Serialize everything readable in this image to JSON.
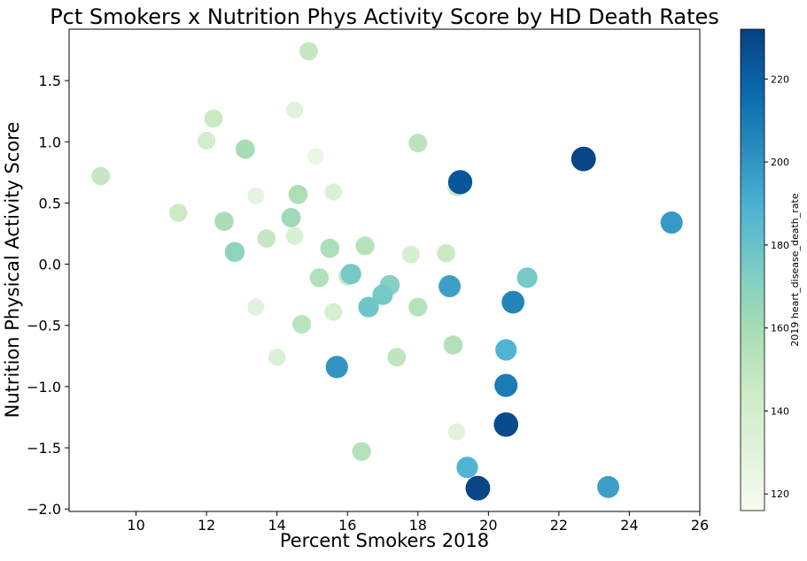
{
  "chart_data": {
    "type": "scatter",
    "title": "Pct Smokers x Nutrition Phys Activity Score by HD Death Rates",
    "xlabel": "Percent Smokers 2018",
    "ylabel": "Nutrition Physical Activity Score",
    "xlim": [
      8.1,
      26.0
    ],
    "ylim": [
      -2.02,
      1.92
    ],
    "x_ticks": [
      10,
      12,
      14,
      16,
      18,
      20,
      22,
      24,
      26
    ],
    "y_ticks": [
      -2.0,
      -1.5,
      -1.0,
      -0.5,
      0.0,
      0.5,
      1.0,
      1.5
    ],
    "x_tick_labels": [
      "10",
      "12",
      "14",
      "16",
      "18",
      "20",
      "22",
      "24",
      "26"
    ],
    "y_tick_labels": [
      "−2.0",
      "−1.5",
      "−1.0",
      "−0.5",
      "0.0",
      "0.5",
      "1.0",
      "1.5"
    ],
    "colorbar": {
      "label": "2019 heart_disease_death_rate",
      "range": [
        116,
        232
      ],
      "ticks": [
        120,
        140,
        160,
        180,
        200,
        220
      ],
      "tick_labels": [
        "120",
        "140",
        "160",
        "180",
        "200",
        "220"
      ],
      "colormap": "GnBu",
      "stops": [
        "#f7fcf0",
        "#e0f3db",
        "#ccebc5",
        "#a8ddb5",
        "#7bccc4",
        "#4eb3d3",
        "#2b8cbe",
        "#0868ac",
        "#084081"
      ]
    },
    "grid": false,
    "points": [
      {
        "x": 9.0,
        "y": 0.72,
        "v": 148
      },
      {
        "x": 11.2,
        "y": 0.42,
        "v": 145
      },
      {
        "x": 12.0,
        "y": 1.01,
        "v": 140
      },
      {
        "x": 12.2,
        "y": 1.19,
        "v": 146
      },
      {
        "x": 12.5,
        "y": 0.35,
        "v": 158
      },
      {
        "x": 12.8,
        "y": 0.1,
        "v": 168
      },
      {
        "x": 13.1,
        "y": 0.94,
        "v": 160
      },
      {
        "x": 13.4,
        "y": 0.56,
        "v": 128
      },
      {
        "x": 13.4,
        "y": -0.35,
        "v": 130
      },
      {
        "x": 13.7,
        "y": 0.21,
        "v": 148
      },
      {
        "x": 14.0,
        "y": -0.76,
        "v": 134
      },
      {
        "x": 14.4,
        "y": 0.38,
        "v": 162
      },
      {
        "x": 14.5,
        "y": 1.26,
        "v": 130
      },
      {
        "x": 14.5,
        "y": 0.23,
        "v": 136
      },
      {
        "x": 14.6,
        "y": 0.57,
        "v": 158
      },
      {
        "x": 14.7,
        "y": -0.49,
        "v": 152
      },
      {
        "x": 14.9,
        "y": 1.74,
        "v": 148
      },
      {
        "x": 15.1,
        "y": 0.88,
        "v": 124
      },
      {
        "x": 15.2,
        "y": -0.11,
        "v": 156
      },
      {
        "x": 15.5,
        "y": 0.13,
        "v": 158
      },
      {
        "x": 15.6,
        "y": 0.59,
        "v": 134
      },
      {
        "x": 15.6,
        "y": -0.39,
        "v": 138
      },
      {
        "x": 15.7,
        "y": -0.84,
        "v": 200
      },
      {
        "x": 16.0,
        "y": -0.1,
        "v": 146
      },
      {
        "x": 16.1,
        "y": -0.08,
        "v": 176
      },
      {
        "x": 16.4,
        "y": -1.53,
        "v": 154
      },
      {
        "x": 16.5,
        "y": 0.15,
        "v": 154
      },
      {
        "x": 16.6,
        "y": -0.35,
        "v": 178
      },
      {
        "x": 17.0,
        "y": -0.25,
        "v": 176
      },
      {
        "x": 17.2,
        "y": -0.17,
        "v": 170
      },
      {
        "x": 17.4,
        "y": -0.76,
        "v": 150
      },
      {
        "x": 17.8,
        "y": 0.08,
        "v": 138
      },
      {
        "x": 18.0,
        "y": 0.99,
        "v": 152
      },
      {
        "x": 18.0,
        "y": -0.35,
        "v": 154
      },
      {
        "x": 18.8,
        "y": 0.09,
        "v": 146
      },
      {
        "x": 18.9,
        "y": -0.18,
        "v": 196
      },
      {
        "x": 19.0,
        "y": -0.66,
        "v": 156
      },
      {
        "x": 19.1,
        "y": -1.37,
        "v": 130
      },
      {
        "x": 19.2,
        "y": 0.67,
        "v": 224
      },
      {
        "x": 19.1,
        "y": 0.63,
        "v": 148
      },
      {
        "x": 19.4,
        "y": -1.66,
        "v": 188
      },
      {
        "x": 19.7,
        "y": -1.83,
        "v": 230
      },
      {
        "x": 20.5,
        "y": -0.7,
        "v": 188
      },
      {
        "x": 20.5,
        "y": -0.99,
        "v": 210
      },
      {
        "x": 20.5,
        "y": -1.31,
        "v": 228
      },
      {
        "x": 20.7,
        "y": -0.31,
        "v": 206
      },
      {
        "x": 21.1,
        "y": -0.11,
        "v": 176
      },
      {
        "x": 22.7,
        "y": 0.86,
        "v": 230
      },
      {
        "x": 23.4,
        "y": -1.82,
        "v": 196
      },
      {
        "x": 25.2,
        "y": 0.34,
        "v": 198
      }
    ]
  }
}
